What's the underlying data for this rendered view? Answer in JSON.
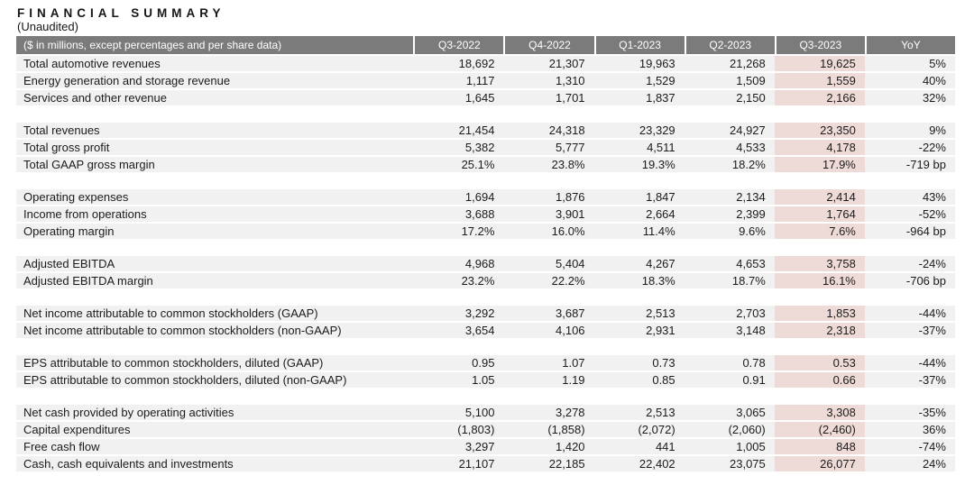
{
  "page": {
    "title": "FINANCIAL SUMMARY",
    "subtitle": "(Unaudited)"
  },
  "colors": {
    "header_bg": "#7b7b7b",
    "header_text": "#ffffff",
    "row_bg": "#f1f1f1",
    "highlight_bg": "#eedbd8",
    "text": "#1b1b1b"
  },
  "table": {
    "label_header": "($ in millions, except percentages and per share data)",
    "columns": [
      "Q3-2022",
      "Q4-2022",
      "Q1-2023",
      "Q2-2023",
      "Q3-2023",
      "YoY"
    ],
    "highlight_column": "Q3-2023",
    "highlight_column_index": 4,
    "sections": [
      {
        "rows": [
          {
            "label": "Total automotive revenues",
            "values": [
              "18,692",
              "21,307",
              "19,963",
              "21,268",
              "19,625",
              "5%"
            ]
          },
          {
            "label": "Energy generation and storage revenue",
            "values": [
              "1,117",
              "1,310",
              "1,529",
              "1,509",
              "1,559",
              "40%"
            ]
          },
          {
            "label": "Services and other revenue",
            "values": [
              "1,645",
              "1,701",
              "1,837",
              "2,150",
              "2,166",
              "32%"
            ]
          }
        ]
      },
      {
        "rows": [
          {
            "label": "Total revenues",
            "values": [
              "21,454",
              "24,318",
              "23,329",
              "24,927",
              "23,350",
              "9%"
            ]
          },
          {
            "label": "Total gross profit",
            "values": [
              "5,382",
              "5,777",
              "4,511",
              "4,533",
              "4,178",
              "-22%"
            ]
          },
          {
            "label": "Total GAAP gross margin",
            "values": [
              "25.1%",
              "23.8%",
              "19.3%",
              "18.2%",
              "17.9%",
              "-719 bp"
            ]
          }
        ]
      },
      {
        "rows": [
          {
            "label": "Operating expenses",
            "values": [
              "1,694",
              "1,876",
              "1,847",
              "2,134",
              "2,414",
              "43%"
            ]
          },
          {
            "label": "Income from operations",
            "values": [
              "3,688",
              "3,901",
              "2,664",
              "2,399",
              "1,764",
              "-52%"
            ]
          },
          {
            "label": "Operating margin",
            "values": [
              "17.2%",
              "16.0%",
              "11.4%",
              "9.6%",
              "7.6%",
              "-964 bp"
            ]
          }
        ]
      },
      {
        "rows": [
          {
            "label": "Adjusted EBITDA",
            "values": [
              "4,968",
              "5,404",
              "4,267",
              "4,653",
              "3,758",
              "-24%"
            ]
          },
          {
            "label": "Adjusted EBITDA margin",
            "values": [
              "23.2%",
              "22.2%",
              "18.3%",
              "18.7%",
              "16.1%",
              "-706 bp"
            ]
          }
        ]
      },
      {
        "rows": [
          {
            "label": "Net income attributable to common stockholders (GAAP)",
            "values": [
              "3,292",
              "3,687",
              "2,513",
              "2,703",
              "1,853",
              "-44%"
            ]
          },
          {
            "label": "Net income attributable to common stockholders (non-GAAP)",
            "values": [
              "3,654",
              "4,106",
              "2,931",
              "3,148",
              "2,318",
              "-37%"
            ]
          }
        ]
      },
      {
        "rows": [
          {
            "label": "EPS attributable to common stockholders, diluted (GAAP)",
            "values": [
              "0.95",
              "1.07",
              "0.73",
              "0.78",
              "0.53",
              "-44%"
            ]
          },
          {
            "label": "EPS attributable to common stockholders, diluted (non-GAAP)",
            "values": [
              "1.05",
              "1.19",
              "0.85",
              "0.91",
              "0.66",
              "-37%"
            ]
          }
        ]
      },
      {
        "rows": [
          {
            "label": "Net cash provided by operating activities",
            "values": [
              "5,100",
              "3,278",
              "2,513",
              "3,065",
              "3,308",
              "-35%"
            ]
          },
          {
            "label": "Capital expenditures",
            "values": [
              "(1,803)",
              "(1,858)",
              "(2,072)",
              "(2,060)",
              "(2,460)",
              "36%"
            ]
          },
          {
            "label": "Free cash flow",
            "values": [
              "3,297",
              "1,420",
              "441",
              "1,005",
              "848",
              "-74%"
            ]
          },
          {
            "label": "Cash, cash equivalents and investments",
            "values": [
              "21,107",
              "22,185",
              "22,402",
              "23,075",
              "26,077",
              "24%"
            ]
          }
        ]
      }
    ]
  }
}
